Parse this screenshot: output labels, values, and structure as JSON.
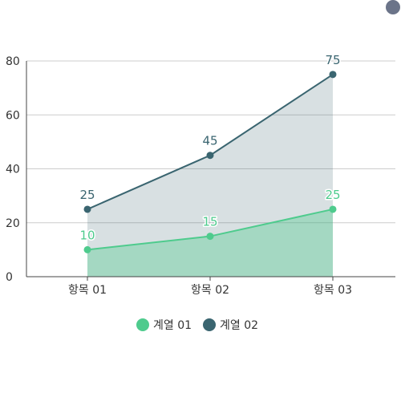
{
  "colors": {
    "series1": "#4ecb8d",
    "series2": "#3a6570",
    "axis": "#444444",
    "grid": "#cccccc",
    "corner_dot": "#6b7489"
  },
  "chart_data": {
    "type": "area",
    "categories": [
      "항목 01",
      "항목 02",
      "항목 03"
    ],
    "series": [
      {
        "name": "계열 01",
        "values": [
          10,
          15,
          25
        ],
        "color": "#4ecb8d"
      },
      {
        "name": "계열 02",
        "values": [
          25,
          45,
          75
        ],
        "color": "#3a6570"
      }
    ],
    "title": "",
    "xlabel": "",
    "ylabel": "",
    "ylim": [
      0,
      80
    ],
    "yticks": [
      0,
      20,
      40,
      60,
      80
    ],
    "grid": true,
    "legend": "bottom"
  }
}
